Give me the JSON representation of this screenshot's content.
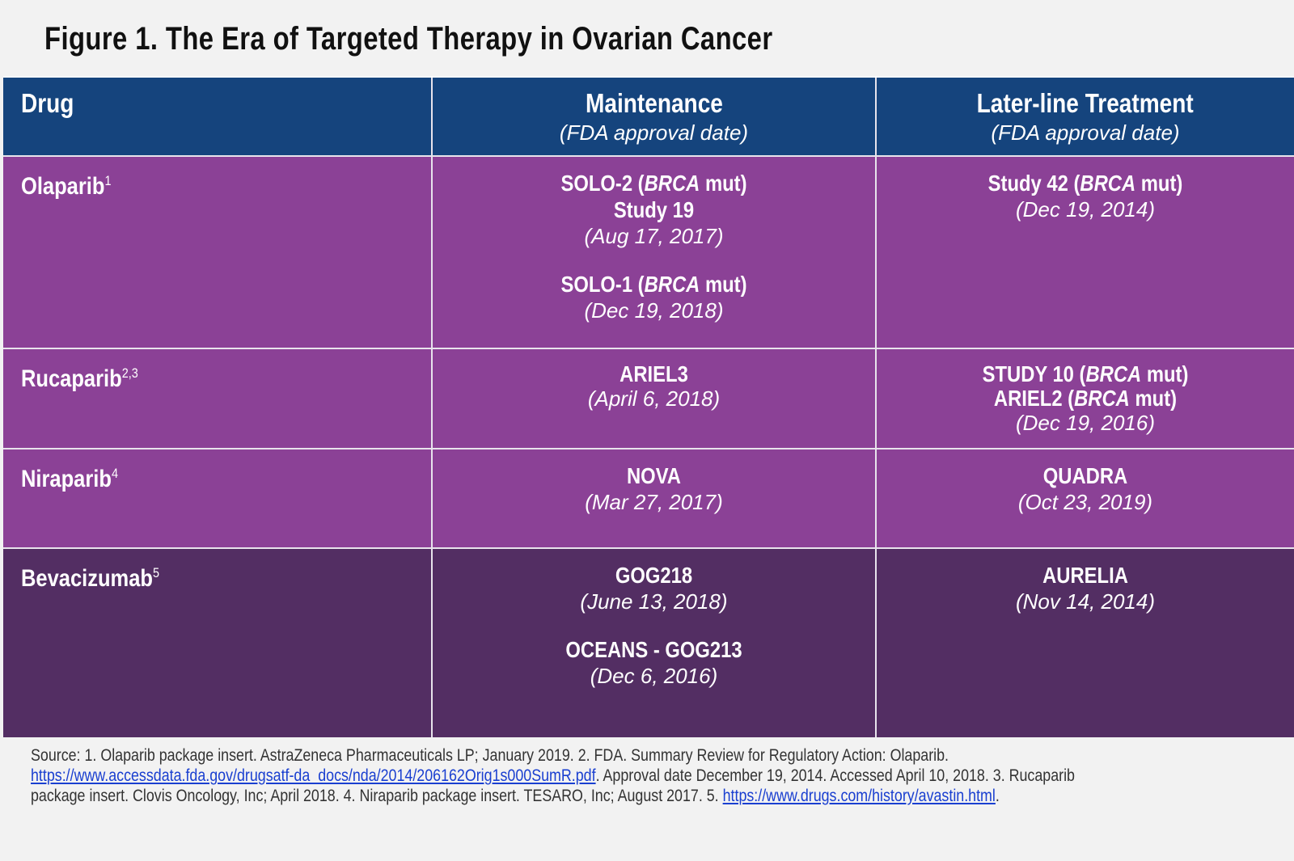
{
  "title": "Figure 1. The Era of Targeted Therapy in Ovarian Cancer",
  "headers": {
    "drug": "Drug",
    "maintenance": "Maintenance",
    "maintenance_sub": "(FDA approval date)",
    "later": "Later-line Treatment",
    "later_sub": "(FDA approval date)"
  },
  "rows": [
    {
      "drug": "Olaparib",
      "ref": "1",
      "maintenance": [
        {
          "lines": [
            "SOLO-2 (BRCA mut)",
            "Study 19"
          ],
          "date": "(Aug 17, 2017)"
        },
        {
          "lines": [
            "SOLO-1 (BRCA mut)"
          ],
          "date": "(Dec 19, 2018)"
        }
      ],
      "later": [
        {
          "lines": [
            "Study 42 (BRCA mut)"
          ],
          "date": "(Dec 19, 2014)"
        }
      ]
    },
    {
      "drug": "Rucaparib",
      "ref": "2,3",
      "maintenance": [
        {
          "lines": [
            "ARIEL3"
          ],
          "date": "(April 6, 2018)"
        }
      ],
      "later": [
        {
          "lines": [
            "STUDY 10 (BRCA mut)",
            "ARIEL2 (BRCA mut)"
          ],
          "date": "(Dec 19, 2016)"
        }
      ]
    },
    {
      "drug": "Niraparib",
      "ref": "4",
      "maintenance": [
        {
          "lines": [
            "NOVA"
          ],
          "date": "(Mar 27, 2017)"
        }
      ],
      "later": [
        {
          "lines": [
            "QUADRA"
          ],
          "date": "(Oct 23, 2019)"
        }
      ]
    },
    {
      "drug": "Bevacizumab",
      "ref": "5",
      "maintenance": [
        {
          "lines": [
            "GOG218"
          ],
          "date": "(June 13, 2018)"
        },
        {
          "lines": [
            "OCEANS - GOG213"
          ],
          "date": "(Dec 6, 2016)"
        }
      ],
      "later": [
        {
          "lines": [
            "AURELIA"
          ],
          "date": "(Nov 14, 2014)"
        }
      ]
    }
  ],
  "source": {
    "text1": "Source: 1. Olaparib package insert. AstraZeneca Pharmaceuticals LP; January 2019. 2. FDA. Summary Review for Regulatory Action: Olaparib. ",
    "link1": "https://www.accessdata.fda.gov/drugsatf-da_docs/nda/2014/206162Orig1s000SumR.pdf",
    "text2": ". Approval date December 19, 2014. Accessed April 10, 2018. 3. Rucaparib package insert. Clovis Oncology, Inc; April 2018. 4. Niraparib package insert. TESARO, Inc; August 2017. 5. ",
    "link2": "https://www.drugs.com/history/avastin.html",
    "text3": "."
  },
  "colors": {
    "header": "#15447d",
    "purple": "#8b4196",
    "dark_purple": "#532e63",
    "link": "#1a3fd0"
  }
}
